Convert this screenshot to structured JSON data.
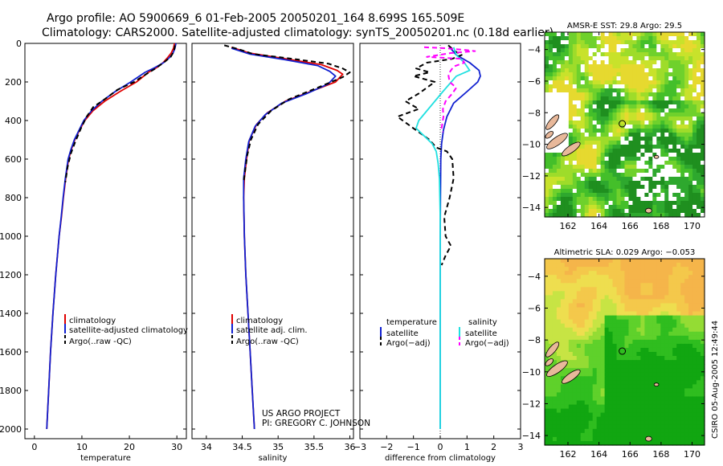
{
  "header": {
    "line1": "Argo profile: AO 5900669_6 01-Feb-2005 20050201_164 8.699S 165.509E",
    "line2": "Climatology: CARS2000. Satellite-adjusted climatology: synTS_20050201.nc (0.18d earlier)"
  },
  "colors": {
    "climatology": "#e00000",
    "satellite": "#1020d0",
    "argo": "#000000",
    "salinity_sat": "#20e0e0",
    "salinity_argo": "#ff00ff"
  },
  "chart_data": [
    {
      "type": "line",
      "title": "",
      "xlabel": "temperature",
      "ylabel": "",
      "xlim": [
        -2,
        32
      ],
      "ylim": [
        2050,
        0
      ],
      "xticks": [
        0,
        10,
        20,
        30
      ],
      "yticks": [
        0,
        200,
        400,
        600,
        800,
        1000,
        1200,
        1400,
        1600,
        1800,
        2000
      ],
      "legend": [
        "climatology",
        "satellite-adjusted climatology",
        "Argo(..raw -QC)"
      ],
      "series": [
        {
          "name": "climatology",
          "points": [
            [
              29.5,
              0
            ],
            [
              29.3,
              25
            ],
            [
              28.8,
              50
            ],
            [
              28,
              75
            ],
            [
              27.1,
              100
            ],
            [
              25.8,
              125
            ],
            [
              24,
              150
            ],
            [
              21.5,
              200
            ],
            [
              18,
              250
            ],
            [
              14.8,
              300
            ],
            [
              12.3,
              350
            ],
            [
              10.6,
              400
            ],
            [
              9.5,
              450
            ],
            [
              8.5,
              500
            ],
            [
              7.8,
              550
            ],
            [
              7.2,
              600
            ],
            [
              6.6,
              700
            ],
            [
              6.1,
              800
            ],
            [
              5.7,
              900
            ],
            [
              5.2,
              1000
            ],
            [
              4.5,
              1200
            ],
            [
              3.9,
              1400
            ],
            [
              3.4,
              1600
            ],
            [
              3,
              1800
            ],
            [
              2.6,
              2000
            ]
          ]
        },
        {
          "name": "satellite-adjusted climatology",
          "points": [
            [
              29.8,
              0
            ],
            [
              29.6,
              25
            ],
            [
              29.2,
              50
            ],
            [
              28.4,
              75
            ],
            [
              27.2,
              100
            ],
            [
              25.4,
              125
            ],
            [
              23.3,
              150
            ],
            [
              20.3,
              200
            ],
            [
              17,
              250
            ],
            [
              14.2,
              300
            ],
            [
              12,
              350
            ],
            [
              10.4,
              400
            ],
            [
              9.4,
              450
            ],
            [
              8.4,
              500
            ],
            [
              7.7,
              550
            ],
            [
              7.1,
              600
            ],
            [
              6.5,
              700
            ],
            [
              6.05,
              800
            ],
            [
              5.65,
              900
            ],
            [
              5.2,
              1000
            ],
            [
              4.5,
              1200
            ],
            [
              3.9,
              1400
            ],
            [
              3.4,
              1600
            ],
            [
              3,
              1800
            ],
            [
              2.6,
              2000
            ]
          ]
        },
        {
          "name": "Argo(..raw -QC)",
          "points": [
            [
              29.6,
              10
            ],
            [
              29.4,
              40
            ],
            [
              28.7,
              70
            ],
            [
              27.2,
              100
            ],
            [
              25.5,
              130
            ],
            [
              23.5,
              160
            ],
            [
              21,
              200
            ],
            [
              17.5,
              240
            ],
            [
              14.8,
              290
            ],
            [
              12.4,
              330
            ],
            [
              11,
              380
            ],
            [
              9.8,
              440
            ],
            [
              8.6,
              510
            ],
            [
              7.7,
              570
            ],
            [
              7,
              640
            ],
            [
              6.5,
              720
            ]
          ]
        }
      ]
    },
    {
      "type": "line",
      "title": "",
      "xlabel": "salinity",
      "ylabel": "",
      "xlim": [
        33.8,
        36.05
      ],
      "ylim": [
        2050,
        0
      ],
      "xticks": [
        34,
        34.5,
        35,
        35.5,
        36
      ],
      "xticklabels": [
        "34",
        "34.5",
        "35",
        "35.5",
        "36"
      ],
      "legend": [
        "climatology",
        "satellite adj. clim.",
        "Argo(..raw -QC)"
      ],
      "series": [
        {
          "name": "climatology",
          "points": [
            [
              34.35,
              20
            ],
            [
              34.6,
              50
            ],
            [
              35.1,
              80
            ],
            [
              35.6,
              110
            ],
            [
              35.82,
              140
            ],
            [
              35.9,
              160
            ],
            [
              35.8,
              200
            ],
            [
              35.45,
              250
            ],
            [
              35.1,
              300
            ],
            [
              34.85,
              360
            ],
            [
              34.7,
              420
            ],
            [
              34.6,
              500
            ],
            [
              34.56,
              600
            ],
            [
              34.53,
              700
            ],
            [
              34.52,
              800
            ],
            [
              34.53,
              1000
            ],
            [
              34.55,
              1200
            ],
            [
              34.58,
              1400
            ],
            [
              34.61,
              1600
            ],
            [
              34.64,
              1800
            ],
            [
              34.67,
              2000
            ]
          ]
        },
        {
          "name": "satellite adj. clim.",
          "points": [
            [
              34.35,
              25
            ],
            [
              34.6,
              55
            ],
            [
              35.1,
              85
            ],
            [
              35.55,
              115
            ],
            [
              35.72,
              145
            ],
            [
              35.8,
              170
            ],
            [
              35.7,
              210
            ],
            [
              35.4,
              260
            ],
            [
              35.05,
              310
            ],
            [
              34.82,
              370
            ],
            [
              34.68,
              430
            ],
            [
              34.59,
              510
            ],
            [
              34.55,
              600
            ],
            [
              34.52,
              700
            ],
            [
              34.52,
              800
            ],
            [
              34.53,
              1000
            ],
            [
              34.55,
              1200
            ],
            [
              34.58,
              1400
            ],
            [
              34.61,
              1600
            ],
            [
              34.64,
              1800
            ],
            [
              34.67,
              2000
            ]
          ]
        },
        {
          "name": "Argo(..raw -QC)",
          "points": [
            [
              34.25,
              10
            ],
            [
              34.45,
              30
            ],
            [
              34.65,
              55
            ],
            [
              35.2,
              80
            ],
            [
              35.7,
              105
            ],
            [
              35.9,
              130
            ],
            [
              36,
              150
            ],
            [
              35.9,
              175
            ],
            [
              35.55,
              230
            ],
            [
              35.15,
              290
            ],
            [
              34.9,
              350
            ],
            [
              34.72,
              420
            ],
            [
              34.62,
              500
            ],
            [
              34.57,
              580
            ],
            [
              34.54,
              660
            ],
            [
              34.52,
              720
            ]
          ]
        }
      ]
    },
    {
      "type": "line",
      "title": "",
      "xlabel": "difference from climatology",
      "ylabel": "",
      "xlim": [
        -3,
        3
      ],
      "ylim": [
        2050,
        0
      ],
      "xticks": [
        -3,
        -2,
        -1,
        0,
        1,
        2,
        3
      ],
      "xticklabels": [
        "−3",
        "−2",
        "−1",
        "0",
        "1",
        "2",
        "3"
      ],
      "legend_left_title": "temperature",
      "legend_right_title": "salinity",
      "legend": [
        "satellite",
        "Argo(−adj)",
        "satellite",
        "Argo(−adj)"
      ],
      "series": [
        {
          "name": "temperature satellite",
          "points": [
            [
              0.35,
              20
            ],
            [
              0.6,
              60
            ],
            [
              1.1,
              100
            ],
            [
              1.45,
              140
            ],
            [
              1.5,
              170
            ],
            [
              1.4,
              200
            ],
            [
              1.0,
              250
            ],
            [
              0.5,
              310
            ],
            [
              0.25,
              380
            ],
            [
              0.12,
              450
            ],
            [
              0.05,
              520
            ],
            [
              0.02,
              600
            ],
            [
              0.01,
              800
            ],
            [
              0,
              1000
            ],
            [
              0,
              1200
            ],
            [
              0,
              2000
            ]
          ]
        },
        {
          "name": "temperature Argo(-adj)",
          "points": [
            [
              0.3,
              10
            ],
            [
              0.55,
              40
            ],
            [
              0.8,
              60
            ],
            [
              0.45,
              80
            ],
            [
              -0.5,
              100
            ],
            [
              -0.9,
              130
            ],
            [
              -0.4,
              150
            ],
            [
              -1.0,
              170
            ],
            [
              -0.2,
              200
            ],
            [
              -0.8,
              260
            ],
            [
              -1.3,
              300
            ],
            [
              -0.8,
              340
            ],
            [
              -1.6,
              380
            ],
            [
              -1.2,
              420
            ],
            [
              -0.8,
              460
            ],
            [
              -0.4,
              500
            ],
            [
              -0.15,
              540
            ],
            [
              0.25,
              560
            ],
            [
              0.45,
              600
            ],
            [
              0.5,
              700
            ],
            [
              0.35,
              800
            ],
            [
              0.15,
              900
            ],
            [
              0.2,
              1000
            ],
            [
              0.4,
              1050
            ],
            [
              0.2,
              1100
            ],
            [
              0.05,
              1150
            ]
          ]
        },
        {
          "name": "salinity satellite",
          "points": [
            [
              0.5,
              20
            ],
            [
              0.6,
              60
            ],
            [
              0.9,
              100
            ],
            [
              1.1,
              140
            ],
            [
              0.6,
              170
            ],
            [
              0.1,
              250
            ],
            [
              -0.2,
              300
            ],
            [
              -0.5,
              350
            ],
            [
              -0.8,
              400
            ],
            [
              -0.9,
              440
            ],
            [
              -0.6,
              480
            ],
            [
              -0.3,
              520
            ],
            [
              -0.15,
              560
            ],
            [
              -0.08,
              620
            ],
            [
              -0.03,
              700
            ],
            [
              0,
              900
            ],
            [
              0,
              2000
            ]
          ]
        },
        {
          "name": "salinity Argo(-adj)",
          "points": [
            [
              -0.6,
              20
            ],
            [
              0.2,
              25
            ],
            [
              1.0,
              35
            ],
            [
              1.3,
              40
            ],
            [
              0.4,
              50
            ],
            [
              -0.5,
              70
            ],
            [
              0.8,
              80
            ],
            [
              0.9,
              100
            ],
            [
              0.5,
              120
            ],
            [
              0.3,
              160
            ],
            [
              0.35,
              200
            ],
            [
              0.6,
              230
            ],
            [
              0.45,
              260
            ],
            [
              0.2,
              300
            ],
            [
              0.1,
              340
            ],
            [
              0.12,
              380
            ],
            [
              0.05,
              440
            ],
            [
              0.1,
              460
            ]
          ]
        }
      ]
    },
    {
      "type": "heatmap",
      "title": "AMSR-E SST: 29.8  Argo: 29.5",
      "xlim": [
        160.5,
        170.8
      ],
      "ylim": [
        -14.6,
        -2.9
      ],
      "xticks": [
        162,
        164,
        166,
        168,
        170
      ],
      "yticks": [
        -4,
        -6,
        -8,
        -10,
        -12,
        -14
      ],
      "xticklabels": [
        "162",
        "164",
        "166",
        "168",
        "170"
      ],
      "yticklabels": [
        "−4",
        "−6",
        "−8",
        "−10",
        "−12",
        "−14"
      ],
      "marker": [
        165.5,
        -8.7
      ]
    },
    {
      "type": "heatmap",
      "title": "Altimetric SLA: 0.029  Argo: −0.053",
      "xlim": [
        160.5,
        170.8
      ],
      "ylim": [
        -14.6,
        -2.9
      ],
      "xticks": [
        162,
        164,
        166,
        168,
        170
      ],
      "yticks": [
        -4,
        -6,
        -8,
        -10,
        -12,
        -14
      ],
      "xticklabels": [
        "162",
        "164",
        "166",
        "168",
        "170"
      ],
      "yticklabels": [
        "−4",
        "−6",
        "−8",
        "−10",
        "−12",
        "−14"
      ],
      "marker": [
        165.5,
        -8.7
      ]
    }
  ],
  "yticklabels": [
    "0",
    "200",
    "400",
    "600",
    "800",
    "1000",
    "1200",
    "1400",
    "1600",
    "1800",
    "2000"
  ],
  "annotations": {
    "project": "US ARGO PROJECT",
    "pi": "PI: GREGORY C. JOHNSON",
    "credit": "CSIRO 05-Aug-2005 12:49:44"
  }
}
